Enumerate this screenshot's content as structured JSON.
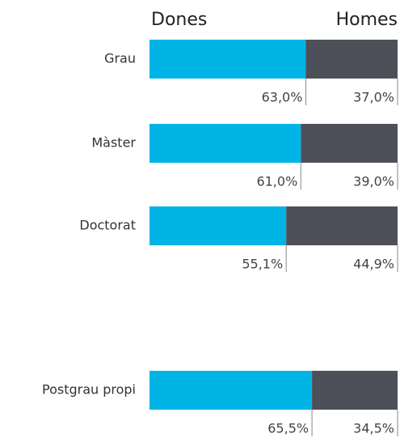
{
  "chart_data": {
    "type": "bar",
    "stacked": true,
    "orientation": "horizontal",
    "categories": [
      "Grau",
      "Màster",
      "Doctorat",
      "Postgrau propi"
    ],
    "series": [
      {
        "name": "Dones",
        "color": "#00b4e6",
        "values": [
          63.0,
          61.0,
          55.1,
          65.5
        ],
        "value_labels": [
          "63,0%",
          "61,0%",
          "55,1%",
          "65,5%"
        ]
      },
      {
        "name": "Homes",
        "color": "#4d5058",
        "values": [
          37.0,
          39.0,
          44.9,
          34.5
        ],
        "value_labels": [
          "37,0%",
          "39,0%",
          "44,9%",
          "34,5%"
        ]
      }
    ]
  }
}
